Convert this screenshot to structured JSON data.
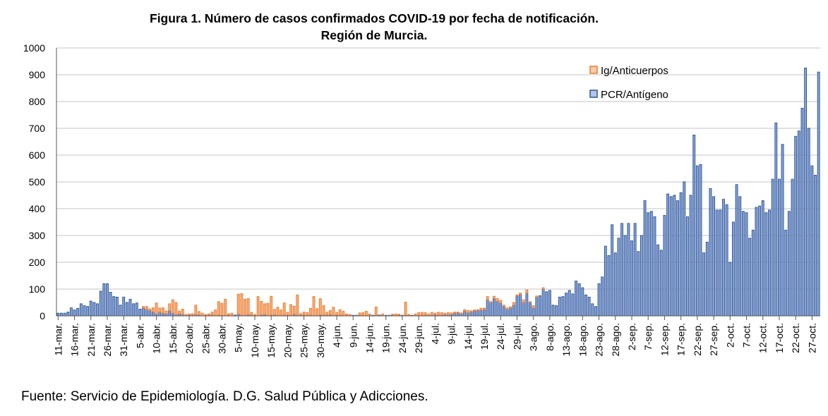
{
  "chart_data": {
    "type": "bar",
    "stacked": true,
    "title_line1": "Figura 1. Número de casos confirmados COVID-19 por fecha de notificación.",
    "title_line2": "Región de Murcia.",
    "xlabel": "",
    "ylabel": "",
    "ylim": [
      0,
      1000
    ],
    "yticks": [
      "0",
      "100",
      "200",
      "300",
      "400",
      "500",
      "600",
      "700",
      "800",
      "900",
      "1000"
    ],
    "grid": true,
    "legend_position": "top-right",
    "start_date": "11-mar",
    "end_date": "27-oct",
    "xtick_labels": [
      "11-mar.",
      "16-mar.",
      "21-mar.",
      "26-mar.",
      "31-mar.",
      "5-abr.",
      "10-abr.",
      "15-abr.",
      "20-abr.",
      "25-abr.",
      "30-abr.",
      "5-may.",
      "10-may.",
      "15-may.",
      "20-may.",
      "25-may.",
      "30-may.",
      "4-jun.",
      "9-jun.",
      "14-jun.",
      "19-jun.",
      "24-jun.",
      "29-jun.",
      "4-jul.",
      "9-jul.",
      "14-jul.",
      "19-jul.",
      "24-jul.",
      "29-jul.",
      "3-ago.",
      "8-ago.",
      "13-ago.",
      "18-ago.",
      "23-ago.",
      "28-ago.",
      "2-sep.",
      "7-sep.",
      "12-sep.",
      "17-sep.",
      "22-sep.",
      "27-sep.",
      "2-oct.",
      "7-oct.",
      "12-oct.",
      "17-oct.",
      "22-oct.",
      "27-oct."
    ],
    "series": [
      {
        "name": "PCR/Antígeno",
        "color": "#4472C4",
        "values": [
          10,
          10,
          10,
          14,
          30,
          22,
          28,
          45,
          38,
          35,
          55,
          50,
          45,
          92,
          120,
          120,
          88,
          72,
          70,
          40,
          70,
          50,
          62,
          45,
          48,
          25,
          30,
          25,
          20,
          15,
          8,
          14,
          10,
          8,
          20,
          10,
          5,
          8,
          5,
          3,
          4,
          3,
          5,
          4,
          2,
          3,
          3,
          4,
          2,
          3,
          2,
          2,
          3,
          2,
          3,
          6,
          3,
          2,
          5,
          3,
          2,
          2,
          4,
          5,
          2,
          3,
          4,
          2,
          2,
          3,
          3,
          2,
          6,
          3,
          3,
          4,
          2,
          3,
          2,
          2,
          4,
          3,
          3,
          5,
          2,
          3,
          3,
          2,
          2,
          2,
          2,
          2,
          3,
          2,
          2,
          2,
          2,
          3,
          3,
          2,
          2,
          2,
          3,
          2,
          3,
          2,
          3,
          2,
          2,
          2,
          2,
          3,
          4,
          2,
          3,
          5,
          3,
          4,
          5,
          4,
          6,
          10,
          12,
          8,
          18,
          12,
          15,
          20,
          20,
          22,
          24,
          60,
          50,
          65,
          55,
          48,
          35,
          25,
          30,
          40,
          75,
          80,
          50,
          85,
          50,
          30,
          70,
          75,
          100,
          90,
          95,
          40,
          38,
          70,
          72,
          85,
          95,
          82,
          130,
          120,
          105,
          78,
          70,
          45,
          35,
          120,
          145,
          260,
          225,
          340,
          235,
          290,
          345,
          300,
          345,
          280,
          345,
          240,
          300,
          430,
          385,
          390,
          370,
          265,
          245,
          375,
          455,
          445,
          450,
          430,
          460,
          500,
          370,
          450,
          675,
          560,
          565,
          235,
          275,
          475,
          445,
          395,
          395,
          435,
          415,
          200,
          350,
          490,
          445,
          390,
          385,
          290,
          320,
          405,
          410,
          430,
          385,
          395,
          510,
          720,
          510,
          640,
          320,
          390,
          510,
          670,
          690,
          775,
          925,
          700,
          560,
          525,
          910
        ]
      },
      {
        "name": "Ig/Anticuerpos",
        "color": "#ED7D31",
        "values": [
          0,
          0,
          0,
          0,
          0,
          0,
          0,
          0,
          0,
          0,
          0,
          0,
          0,
          0,
          0,
          0,
          0,
          0,
          0,
          0,
          0,
          0,
          0,
          0,
          0,
          0,
          5,
          10,
          6,
          15,
          40,
          15,
          20,
          10,
          25,
          50,
          45,
          10,
          20,
          2,
          3,
          5,
          35,
          12,
          8,
          2,
          4,
          10,
          20,
          50,
          45,
          60,
          5,
          8,
          0,
          75,
          80,
          60,
          60,
          10,
          3,
          70,
          50,
          40,
          45,
          70,
          20,
          30,
          20,
          45,
          10,
          40,
          30,
          75,
          5,
          10,
          10,
          25,
          70,
          25,
          60,
          35,
          10,
          15,
          30,
          10,
          20,
          15,
          5,
          3,
          0,
          0,
          8,
          10,
          15,
          5,
          0,
          30,
          0,
          5,
          0,
          0,
          3,
          5,
          3,
          0,
          48,
          3,
          0,
          5,
          10,
          10,
          8,
          5,
          10,
          5,
          10,
          8,
          5,
          8,
          5,
          4,
          2,
          3,
          5,
          8,
          4,
          2,
          3,
          6,
          5,
          12,
          3,
          8,
          10,
          10,
          5,
          5,
          4,
          10,
          3,
          5,
          10,
          12,
          3,
          8,
          4,
          0,
          5,
          0,
          0,
          0,
          0,
          0,
          0,
          0,
          0,
          0,
          0,
          0,
          0,
          0,
          0,
          0,
          0,
          0,
          0,
          0,
          0,
          0,
          0,
          0,
          0,
          0,
          0,
          0,
          0,
          0,
          0,
          0,
          0,
          0,
          0,
          0,
          0,
          0,
          0,
          0,
          0,
          0,
          0,
          0,
          0,
          0,
          0,
          0,
          0,
          0,
          0,
          0,
          0,
          0,
          0,
          0,
          0,
          0,
          0,
          0,
          0,
          0,
          0,
          0,
          0,
          0,
          0,
          0,
          0,
          0,
          0,
          0,
          0,
          0,
          0,
          0,
          0,
          0,
          0,
          0,
          0,
          0,
          0,
          0,
          0,
          0,
          0,
          0,
          0,
          0,
          0,
          0
        ]
      }
    ],
    "source": "Fuente: Servicio de Epidemiología. D.G. Salud Pública y Adicciones."
  },
  "legend": {
    "ig_label": "Ig/Anticuerpos",
    "pcr_label": "PCR/Antígeno"
  }
}
